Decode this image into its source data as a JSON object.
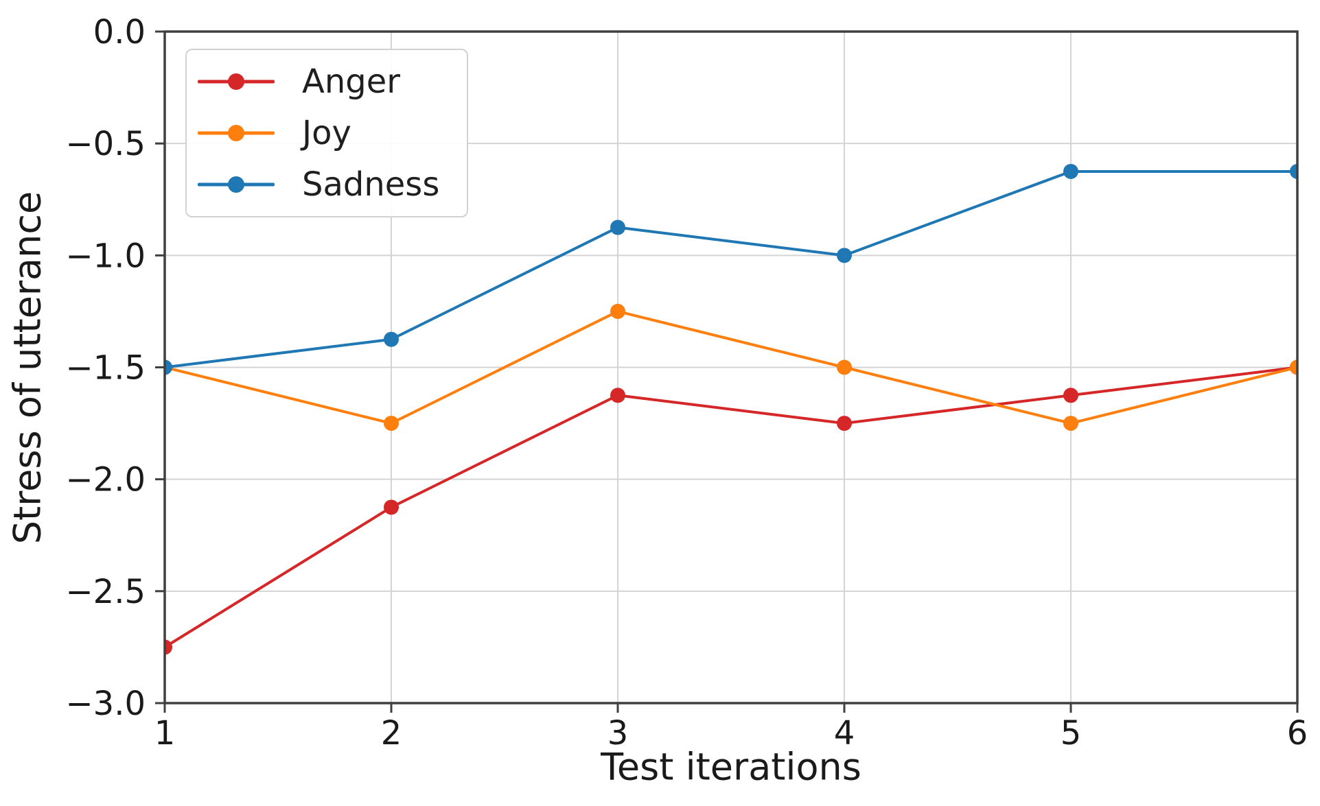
{
  "figure": {
    "background": "#ffffff",
    "spine_color": "#3f3f3f",
    "grid_color": "#d4d4d4",
    "tick_text_color": "#1a1a1a"
  },
  "chart_data": {
    "type": "line",
    "title": "",
    "xlabel": "Test iterations",
    "ylabel": "Stress of utterance",
    "x": [
      1,
      2,
      3,
      4,
      5,
      6
    ],
    "series": [
      {
        "name": "Anger",
        "color": "#d62728",
        "marker": "o",
        "values": [
          -2.75,
          -2.125,
          -1.625,
          -1.75,
          -1.625,
          -1.5
        ]
      },
      {
        "name": "Joy",
        "color": "#ff7f0e",
        "marker": "o",
        "values": [
          -1.5,
          -1.75,
          -1.25,
          -1.5,
          -1.75,
          -1.5
        ]
      },
      {
        "name": "Sadness",
        "color": "#1f77b4",
        "marker": "o",
        "values": [
          -1.5,
          -1.375,
          -0.875,
          -1.0,
          -0.625,
          -0.625
        ]
      }
    ],
    "xlim": [
      1,
      6
    ],
    "ylim": [
      -3.0,
      0.0
    ],
    "xticks": [
      1,
      2,
      3,
      4,
      5,
      6
    ],
    "xtick_labels": [
      "1",
      "2",
      "3",
      "4",
      "5",
      "6"
    ],
    "yticks": [
      0.0,
      -0.5,
      -1.0,
      -1.5,
      -2.0,
      -2.5,
      -3.0
    ],
    "ytick_labels": [
      "0.0",
      "−0.5",
      "−1.0",
      "−1.5",
      "−2.0",
      "−2.5",
      "−3.0"
    ],
    "grid": true,
    "legend": {
      "position": "upper left"
    }
  }
}
